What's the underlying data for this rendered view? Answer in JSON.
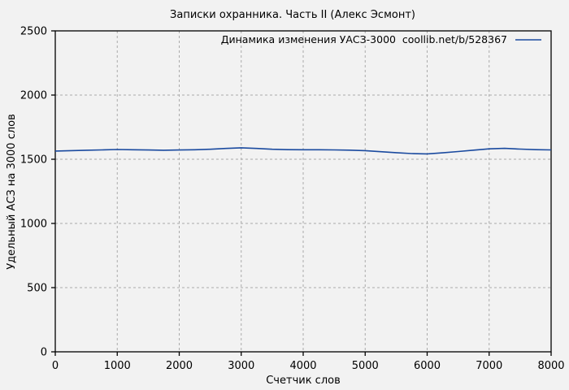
{
  "page": {
    "background_color": "#f2f2f2",
    "text_color": "#000000",
    "border_color": "#000000",
    "grid_color": "#aaaaaa"
  },
  "chart_data": {
    "type": "line",
    "title": "Записки охранника. Часть II (Алекс Эсмонт)",
    "xlabel": "Счетчик слов",
    "ylabel": "Удельный АСЗ на 3000 слов",
    "xlim": [
      0,
      8000
    ],
    "ylim": [
      0,
      2500
    ],
    "x_ticks": [
      0,
      1000,
      2000,
      3000,
      4000,
      5000,
      6000,
      7000,
      8000
    ],
    "y_ticks": [
      0,
      500,
      1000,
      1500,
      2000,
      2500
    ],
    "grid": true,
    "grid_style": "dashed",
    "legend": {
      "label": "Динамика изменения УАСЗ-3000  coollib.net/b/528367",
      "position": "top-right-inside",
      "sample_color": "#1a4a9f"
    },
    "series": [
      {
        "name": "Динамика изменения УАСЗ-3000  coollib.net/b/528367",
        "color": "#1a4a9f",
        "x": [
          0,
          250,
          500,
          750,
          1000,
          1250,
          1500,
          1750,
          2000,
          2250,
          2500,
          2750,
          3000,
          3250,
          3500,
          3750,
          4000,
          4250,
          4500,
          4750,
          5000,
          5250,
          5500,
          5750,
          6000,
          6250,
          6500,
          6750,
          7000,
          7250,
          7500,
          7750,
          8000
        ],
        "y": [
          1564,
          1567,
          1570,
          1573,
          1576,
          1574,
          1572,
          1570,
          1572,
          1574,
          1578,
          1584,
          1589,
          1584,
          1578,
          1575,
          1574,
          1574,
          1573,
          1571,
          1567,
          1559,
          1551,
          1544,
          1542,
          1550,
          1560,
          1571,
          1581,
          1585,
          1579,
          1575,
          1573
        ]
      }
    ]
  }
}
